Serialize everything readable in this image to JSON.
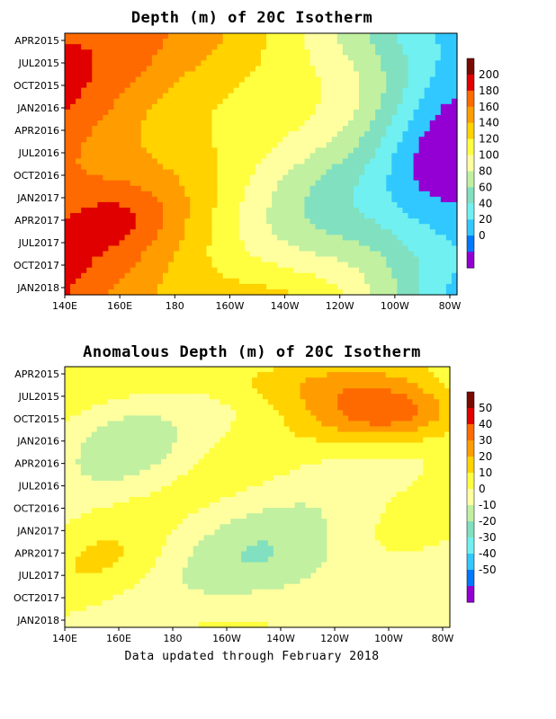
{
  "footer": "Data updated through February 2018",
  "chart_data": [
    {
      "type": "heatmap",
      "title": "Depth (m) of 20C Isotherm",
      "x_tick_labels": [
        "140E",
        "160E",
        "180",
        "160W",
        "140W",
        "120W",
        "100W",
        "80W"
      ],
      "x_range": [
        "140E",
        "80W"
      ],
      "y_tick_labels": [
        "APR2015",
        "JUL2015",
        "OCT2015",
        "JAN2016",
        "APR2016",
        "JUL2016",
        "OCT2016",
        "JAN2017",
        "APR2017",
        "JUL2017",
        "OCT2017",
        "JAN2018"
      ],
      "y_range": [
        "MAR2015",
        "FEB2018"
      ],
      "colorbar": {
        "labels": [
          "200",
          "180",
          "160",
          "140",
          "120",
          "100",
          "80",
          "60",
          "40",
          "20",
          "0"
        ],
        "colors": [
          "#7a0a00",
          "#e00000",
          "#ff6a00",
          "#ff9d00",
          "#ffd200",
          "#ffff40",
          "#ffffa0",
          "#c0f0a0",
          "#80e0c0",
          "#70f0f0",
          "#30c8ff",
          "#0078ff",
          "#9400d3"
        ]
      },
      "grid": "off"
    },
    {
      "type": "heatmap",
      "title": "Anomalous Depth (m) of 20C Isotherm",
      "x_tick_labels": [
        "140E",
        "160E",
        "180",
        "160W",
        "140W",
        "120W",
        "100W",
        "80W"
      ],
      "x_range": [
        "140E",
        "80W"
      ],
      "y_tick_labels": [
        "APR2015",
        "JUL2015",
        "OCT2015",
        "JAN2016",
        "APR2016",
        "JUL2016",
        "OCT2016",
        "JAN2017",
        "APR2017",
        "JUL2017",
        "OCT2017",
        "JAN2018"
      ],
      "y_range": [
        "MAR2015",
        "FEB2018"
      ],
      "colorbar": {
        "labels": [
          "50",
          "40",
          "30",
          "20",
          "10",
          "0",
          "-10",
          "-20",
          "-30",
          "-40",
          "-50"
        ],
        "colors": [
          "#7a0a00",
          "#e00000",
          "#ff6a00",
          "#ff9d00",
          "#ffd200",
          "#ffff40",
          "#ffffa0",
          "#c0f0a0",
          "#80e0c0",
          "#70f0f0",
          "#30c8ff",
          "#0078ff",
          "#9400d3"
        ]
      },
      "grid": "off"
    }
  ]
}
